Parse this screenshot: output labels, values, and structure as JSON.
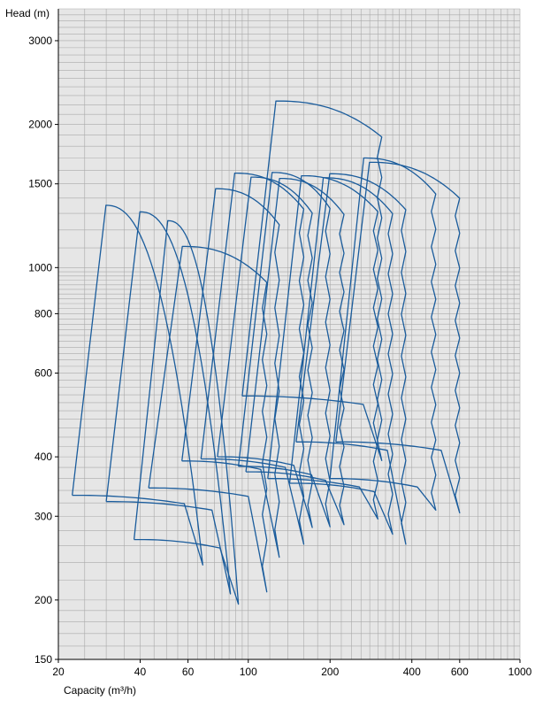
{
  "chart_data": {
    "type": "line",
    "title": "",
    "xlabel": "Capacity (m³/h)",
    "ylabel": "Head (m)",
    "xscale": "log",
    "yscale": "log",
    "xlim": [
      20,
      1000
    ],
    "ylim": [
      150,
      3500
    ],
    "grid": true,
    "colors": {
      "plot_bg": "#e6e6e6",
      "grid": "#a9a9a9",
      "curve": "#1a5c9c",
      "axis": "#000000"
    },
    "x_ticks": [
      {
        "value": 20,
        "label": "20"
      },
      {
        "value": 40,
        "label": "40"
      },
      {
        "value": 60,
        "label": "60"
      },
      {
        "value": 100,
        "label": "100"
      },
      {
        "value": 200,
        "label": "200"
      },
      {
        "value": 400,
        "label": "400"
      },
      {
        "value": 600,
        "label": "600"
      },
      {
        "value": 1000,
        "label": "1000"
      }
    ],
    "y_ticks": [
      {
        "value": 150,
        "label": "150"
      },
      {
        "value": 200,
        "label": "200"
      },
      {
        "value": 300,
        "label": "300"
      },
      {
        "value": 400,
        "label": "400"
      },
      {
        "value": 600,
        "label": "600"
      },
      {
        "value": 800,
        "label": "800"
      },
      {
        "value": 1000,
        "label": "1000"
      },
      {
        "value": 1500,
        "label": "1500"
      },
      {
        "value": 2000,
        "label": "2000"
      },
      {
        "value": 3000,
        "label": "3000"
      }
    ],
    "series": [
      {
        "q_min": 22.5,
        "q_max": 68,
        "h_top": 1352,
        "h_bottom": 332,
        "h_bottom_end": 237,
        "steps": 0
      },
      {
        "q_min": 30,
        "q_max": 86,
        "h_top": 1310,
        "h_bottom": 322,
        "h_bottom_end": 206,
        "steps": 0
      },
      {
        "q_min": 38,
        "q_max": 92,
        "h_top": 1255,
        "h_bottom": 268,
        "h_bottom_end": 196,
        "steps": 0
      },
      {
        "q_min": 43,
        "q_max": 117,
        "h_top": 1108,
        "h_bottom": 344,
        "h_bottom_end": 208,
        "steps": 6
      },
      {
        "q_min": 57,
        "q_max": 130,
        "h_top": 1465,
        "h_bottom": 392,
        "h_bottom_end": 246,
        "steps": 6
      },
      {
        "q_min": 67,
        "q_max": 160,
        "h_top": 1580,
        "h_bottom": 396,
        "h_bottom_end": 262,
        "steps": 7
      },
      {
        "q_min": 77,
        "q_max": 172,
        "h_top": 1550,
        "h_bottom": 400,
        "h_bottom_end": 284,
        "steps": 7
      },
      {
        "q_min": 92,
        "q_max": 200,
        "h_top": 1585,
        "h_bottom": 382,
        "h_bottom_end": 285,
        "steps": 7
      },
      {
        "q_min": 98,
        "q_max": 225,
        "h_top": 1540,
        "h_bottom": 372,
        "h_bottom_end": 288,
        "steps": 8
      },
      {
        "q_min": 118,
        "q_max": 300,
        "h_top": 1560,
        "h_bottom": 360,
        "h_bottom_end": 296,
        "steps": 8
      },
      {
        "q_min": 142,
        "q_max": 340,
        "h_top": 1545,
        "h_bottom": 352,
        "h_bottom_end": 275,
        "steps": 8
      },
      {
        "q_min": 150,
        "q_max": 380,
        "h_top": 1575,
        "h_bottom": 430,
        "h_bottom_end": 262,
        "steps": 8
      },
      {
        "q_min": 200,
        "q_max": 490,
        "h_top": 1700,
        "h_bottom": 360,
        "h_bottom_end": 309,
        "steps": 9
      },
      {
        "q_min": 95,
        "q_max": 310,
        "h_top": 2240,
        "h_bottom": 537,
        "h_bottom_end": 393,
        "steps": 8
      },
      {
        "q_min": 210,
        "q_max": 600,
        "h_top": 1665,
        "h_bottom": 430,
        "h_bottom_end": 305,
        "steps": 9
      }
    ]
  }
}
